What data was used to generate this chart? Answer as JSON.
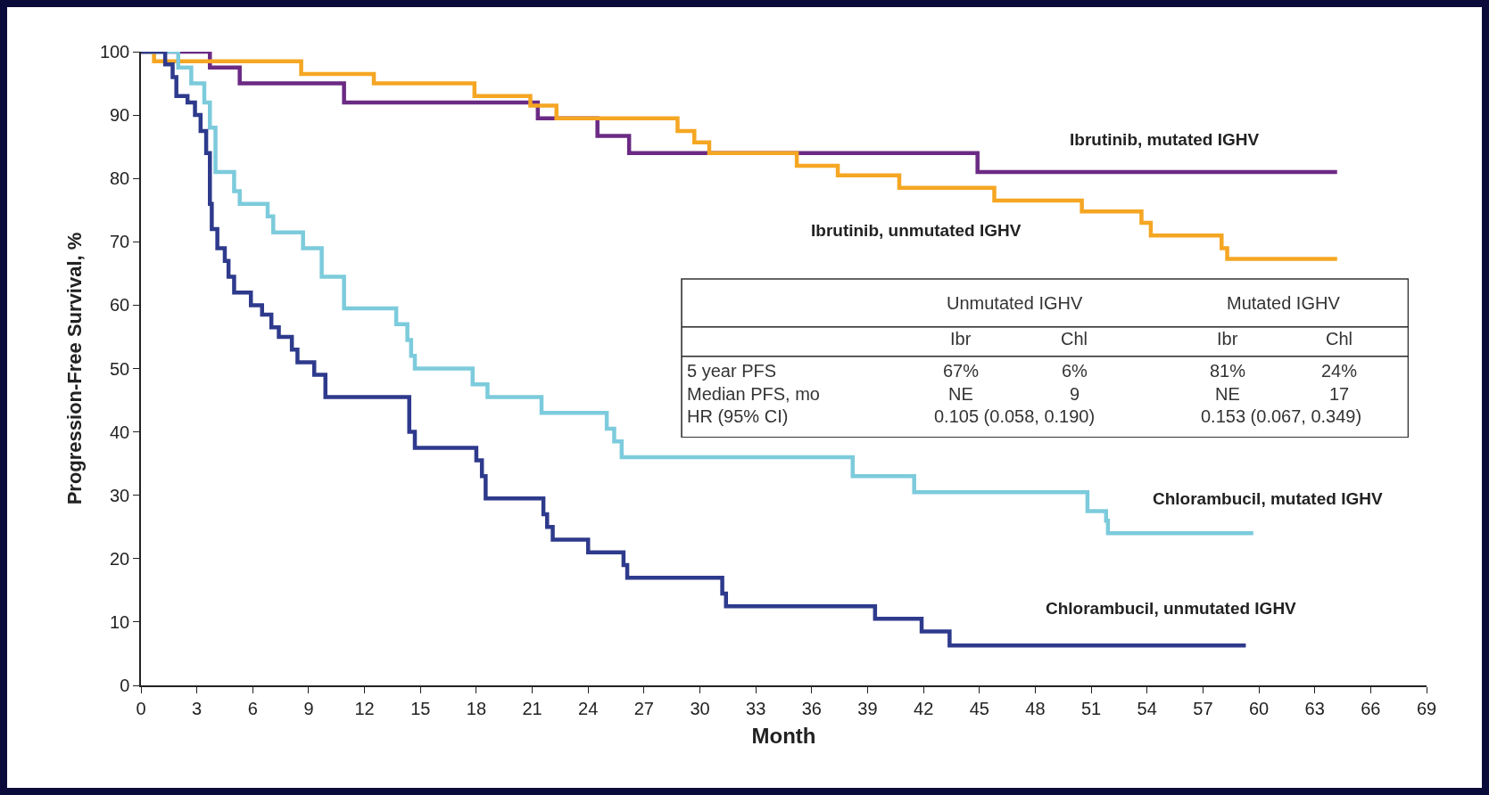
{
  "chart_data": {
    "type": "step",
    "xlabel": "Month",
    "ylabel": "Progression-Free Survival, %",
    "xlim": [
      0,
      69
    ],
    "ylim": [
      0,
      100
    ],
    "xticks": [
      0,
      3,
      6,
      9,
      12,
      15,
      18,
      21,
      24,
      27,
      30,
      33,
      36,
      39,
      42,
      45,
      48,
      51,
      54,
      57,
      60,
      63,
      66,
      69
    ],
    "yticks": [
      0,
      10,
      20,
      30,
      40,
      50,
      60,
      70,
      80,
      90,
      100
    ],
    "grid": false,
    "legend": false,
    "marker": "none",
    "line_style": "solid",
    "series": [
      {
        "name": "Ibrutinib, mutated IGHV",
        "color": "#6b2a84",
        "x": [
          0,
          3.7,
          5.3,
          10.9,
          21.3,
          24.5,
          26.2,
          44.9,
          64.2
        ],
        "values": [
          100,
          97.5,
          95,
          92,
          89.5,
          86.7,
          84,
          81,
          81
        ]
      },
      {
        "name": "Ibrutinib, unmutated IGHV",
        "color": "#f5a623",
        "x": [
          0,
          0.7,
          8.6,
          12.5,
          17.9,
          20.9,
          22.3,
          28.8,
          29.7,
          30.5,
          35.2,
          37.4,
          40.7,
          45.8,
          50.5,
          53.7,
          54.2,
          58.0,
          58.3,
          64.2
        ],
        "values": [
          100,
          98.5,
          96.5,
          95,
          93,
          91.5,
          89.5,
          87.5,
          85.7,
          84,
          82,
          80.5,
          78.5,
          76.5,
          74.8,
          73,
          71,
          69,
          67.3,
          67.3
        ]
      },
      {
        "name": "Chlorambucil, mutated IGHV",
        "color": "#7ccbdc",
        "x": [
          0,
          2.0,
          2.7,
          3.4,
          3.7,
          4.0,
          5.0,
          5.3,
          6.8,
          7.1,
          8.7,
          9.7,
          10.9,
          13.7,
          14.3,
          14.5,
          14.7,
          17.8,
          18.6,
          21.5,
          25.0,
          25.4,
          25.8,
          38.2,
          41.5,
          50.8,
          51.8,
          51.9,
          59.7
        ],
        "values": [
          100,
          97.5,
          95,
          92,
          88,
          81,
          78,
          76,
          74,
          71.5,
          69,
          64.5,
          59.5,
          57,
          54.5,
          52,
          50,
          47.5,
          45.5,
          43,
          40.5,
          38.5,
          36,
          33,
          30.5,
          27.5,
          26,
          24,
          24
        ]
      },
      {
        "name": "Chlorambucil, unmutated IGHV",
        "color": "#2e3a8c",
        "x": [
          0,
          1.3,
          1.7,
          1.9,
          2.5,
          2.9,
          3.2,
          3.5,
          3.7,
          3.8,
          4.1,
          4.5,
          4.7,
          5.0,
          5.9,
          6.5,
          7.0,
          7.4,
          8.1,
          8.4,
          9.3,
          9.9,
          14.4,
          14.7,
          18.0,
          18.3,
          18.5,
          21.6,
          21.8,
          22.1,
          24.0,
          25.9,
          26.1,
          31.2,
          31.4,
          39.4,
          41.9,
          43.4,
          59.3
        ],
        "values": [
          100,
          98,
          96,
          93,
          92,
          90,
          87.5,
          84,
          76,
          72,
          69,
          67,
          64.5,
          62,
          60,
          58.5,
          56.5,
          55,
          53,
          51,
          49,
          45.5,
          40,
          37.5,
          35.5,
          33,
          29.5,
          27,
          25,
          23,
          21,
          19,
          17,
          14.5,
          12.5,
          10.5,
          8.5,
          6.3,
          6.3
        ]
      }
    ],
    "annotations": [
      "Unmutated IGHV",
      "Mutated IGHV",
      "Ibr",
      "Chl",
      "Ibr",
      "Chl",
      "5 year PFS",
      "67%",
      "6%",
      "81%",
      "24%",
      "Median PFS, mo",
      "NE",
      "9",
      "NE",
      "17",
      "HR (95% CI)",
      "0.105 (0.058, 0.190)",
      "0.153 (0.067, 0.349)"
    ]
  }
}
